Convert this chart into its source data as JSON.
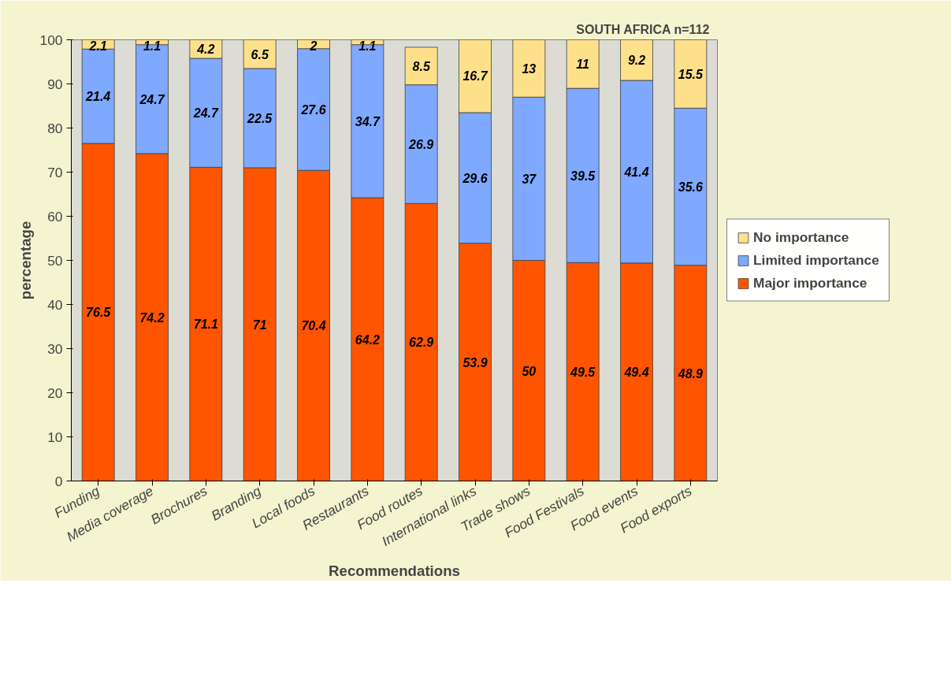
{
  "chart_data": {
    "type": "bar",
    "title": "SOUTH AFRICA   n=112",
    "xlabel": "Recommendations",
    "ylabel": "percentage",
    "categories": [
      "Funding",
      "Media coverage",
      "Brochures",
      "Branding",
      "Local foods",
      "Restaurants",
      "Food routes",
      "International links",
      "Trade shows",
      "Food Festivals",
      "Food events",
      "Food exports"
    ],
    "stacked": true,
    "series": [
      {
        "name": "Major importance",
        "color": "#ff5500",
        "values": [
          76.5,
          74.2,
          71.1,
          71,
          70.4,
          64.2,
          62.9,
          53.9,
          50,
          49.5,
          49.4,
          48.9
        ]
      },
      {
        "name": "Limited importance",
        "color": "#7fa8ff",
        "values": [
          21.4,
          24.7,
          24.7,
          22.5,
          27.6,
          34.7,
          26.9,
          29.6,
          37,
          39.5,
          41.4,
          35.6
        ]
      },
      {
        "name": "No importance",
        "color": "#ffe08a",
        "values": [
          2.1,
          1.1,
          4.2,
          6.5,
          2,
          1.1,
          8.5,
          16.7,
          13,
          11,
          9.2,
          15.5
        ]
      }
    ],
    "ylim": [
      0,
      100
    ],
    "yticks": [
      0,
      10,
      20,
      30,
      40,
      50,
      60,
      70,
      80,
      90,
      100
    ],
    "grid": false,
    "legend": "right",
    "data_labels": true
  }
}
